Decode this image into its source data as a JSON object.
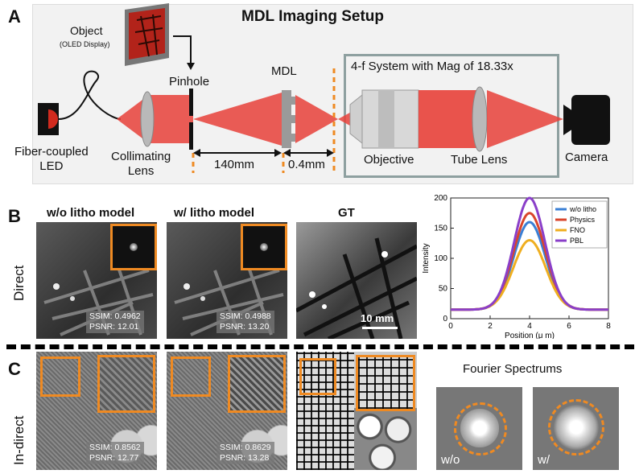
{
  "panelA": {
    "letter": "A",
    "title": "MDL Imaging Setup",
    "object_label": "Object",
    "object_sub": "(OLED Display)",
    "pinhole": "Pinhole",
    "mdl": "MDL",
    "system_label": "4-f System with Mag of 18.33x",
    "led": "Fiber-coupled\nLED",
    "collimating": "Collimating\nLens",
    "dist1": "140mm",
    "dist2": "0.4mm",
    "objective": "Objective",
    "tube_lens": "Tube Lens",
    "camera": "Camera"
  },
  "panelB": {
    "letter": "B",
    "row_label": "Direct",
    "col1": "w/o litho model",
    "col2": "w/ litho model",
    "col3": "GT",
    "m1": "SSIM: 0.4962\nPSNR: 12.01",
    "m2": "SSIM: 0.4988\nPSNR: 13.20",
    "scale": "10 mm"
  },
  "panelC": {
    "letter": "C",
    "row_label": "In-direct",
    "m1": "SSIM: 0.8562\nPSNR: 12.77",
    "m2": "SSIM: 0.8629\nPSNR: 13.28",
    "fourier_title": "Fourier Spectrums",
    "f1": "w/o",
    "f2": "w/"
  },
  "chart_data": {
    "type": "line",
    "xlabel": "Position (μ m)",
    "ylabel": "Intensity",
    "xlim": [
      0,
      8
    ],
    "ylim": [
      0,
      200
    ],
    "xticks": [
      "0",
      "2",
      "4",
      "6",
      "8"
    ],
    "yticks": [
      "0",
      "50",
      "100",
      "150",
      "200"
    ],
    "legend_position": "top-right",
    "series": [
      {
        "name": "w/o litho",
        "color": "#3a7fd5",
        "peak": 160,
        "baseline": 15,
        "center": 4.0,
        "width": 0.8
      },
      {
        "name": "Physics",
        "color": "#d9452b",
        "peak": 175,
        "baseline": 15,
        "center": 4.0,
        "width": 0.8
      },
      {
        "name": "FNO",
        "color": "#efae1f",
        "peak": 130,
        "baseline": 15,
        "center": 4.0,
        "width": 0.82
      },
      {
        "name": "PBL",
        "color": "#8a3fc9",
        "peak": 200,
        "baseline": 15,
        "center": 4.0,
        "width": 0.78
      }
    ]
  }
}
